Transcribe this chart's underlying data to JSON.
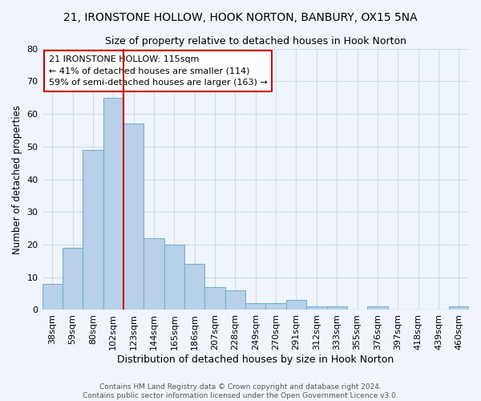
{
  "title_line1": "21, IRONSTONE HOLLOW, HOOK NORTON, BANBURY, OX15 5NA",
  "title_line2": "Size of property relative to detached houses in Hook Norton",
  "xlabel": "Distribution of detached houses by size in Hook Norton",
  "ylabel": "Number of detached properties",
  "bar_labels": [
    "38sqm",
    "59sqm",
    "80sqm",
    "102sqm",
    "123sqm",
    "144sqm",
    "165sqm",
    "186sqm",
    "207sqm",
    "228sqm",
    "249sqm",
    "270sqm",
    "291sqm",
    "312sqm",
    "333sqm",
    "355sqm",
    "376sqm",
    "397sqm",
    "418sqm",
    "439sqm",
    "460sqm"
  ],
  "bar_values": [
    8,
    19,
    49,
    65,
    57,
    22,
    20,
    14,
    7,
    6,
    2,
    2,
    3,
    1,
    1,
    0,
    1,
    0,
    0,
    0,
    1
  ],
  "bar_color": "#b8d0e8",
  "bar_edge_color": "#7aaed0",
  "grid_color": "#d0dce8",
  "background_color": "#f0f5fc",
  "vline_x_index": 4,
  "vline_color": "#cc0000",
  "annotation_text": "21 IRONSTONE HOLLOW: 115sqm\n← 41% of detached houses are smaller (114)\n59% of semi-detached houses are larger (163) →",
  "annotation_box_color": "#ffffff",
  "annotation_box_edge": "#cc0000",
  "ylim": [
    0,
    80
  ],
  "yticks": [
    0,
    10,
    20,
    30,
    40,
    50,
    60,
    70,
    80
  ],
  "footnote": "Contains HM Land Registry data © Crown copyright and database right 2024.\nContains public sector information licensed under the Open Government Licence v3.0."
}
